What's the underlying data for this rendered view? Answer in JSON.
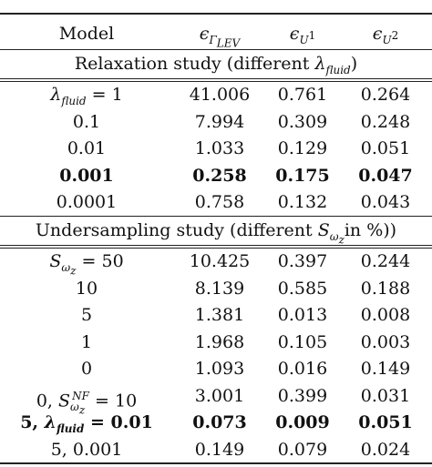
{
  "caption_fragment": "",
  "header": {
    "model": "Model",
    "col1": "ϵΓLEV",
    "col2": "ϵU1",
    "col3": "ϵU2"
  },
  "section1": {
    "title": "Relaxation study (different λfluid)",
    "rows": [
      {
        "model": "λfluid = 1",
        "v1": "41.006",
        "v2": "0.761",
        "v3": "0.264",
        "bold": false
      },
      {
        "model": "0.1",
        "v1": "7.994",
        "v2": "0.309",
        "v3": "0.248",
        "bold": false
      },
      {
        "model": "0.01",
        "v1": "1.033",
        "v2": "0.129",
        "v3": "0.051",
        "bold": false
      },
      {
        "model": "0.001",
        "v1": "0.258",
        "v2": "0.175",
        "v3": "0.047",
        "bold": true
      },
      {
        "model": "0.0001",
        "v1": "0.758",
        "v2": "0.132",
        "v3": "0.043",
        "bold": false
      }
    ]
  },
  "section2": {
    "title": "Undersampling study (different Sωz in %))",
    "rows": [
      {
        "model": "Sωz = 50",
        "v1": "10.425",
        "v2": "0.397",
        "v3": "0.244",
        "bold": false
      },
      {
        "model": "10",
        "v1": "8.139",
        "v2": "0.585",
        "v3": "0.188",
        "bold": false
      },
      {
        "model": "5",
        "v1": "1.381",
        "v2": "0.013",
        "v3": "0.008",
        "bold": false
      },
      {
        "model": "1",
        "v1": "1.968",
        "v2": "0.105",
        "v3": "0.003",
        "bold": false
      },
      {
        "model": "0",
        "v1": "1.093",
        "v2": "0.016",
        "v3": "0.149",
        "bold": false
      },
      {
        "model": "0, SωzNF = 10",
        "v1": "3.001",
        "v2": "0.399",
        "v3": "0.031",
        "bold": false
      },
      {
        "model": "5, λfluid = 0.01",
        "v1": "0.073",
        "v2": "0.009",
        "v3": "0.051",
        "bold": true
      },
      {
        "model": "5, 0.001",
        "v1": "0.149",
        "v2": "0.079",
        "v3": "0.024",
        "bold": false
      }
    ]
  }
}
